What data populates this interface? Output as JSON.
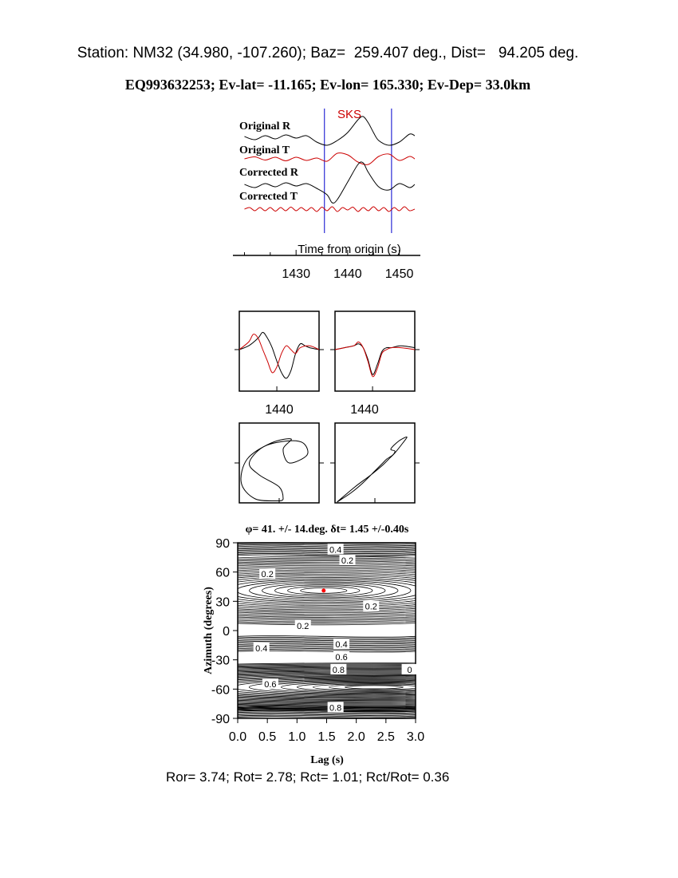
{
  "header": {
    "station_line": "Station: NM32 (34.980, -107.260); Baz=  259.407 deg., Dist=   94.205 deg.",
    "event_line": "EQ993632253; Ev-lat= -11.165; Ev-lon= 165.330; Ev-Dep= 33.0km"
  },
  "footer": {
    "ratios": "Ror= 3.74; Rot= 2.78; Rct= 1.01; Rct/Rot= 0.36"
  },
  "chart_data": [
    {
      "type": "line",
      "phase_label": "SKS",
      "xlabel": "Time from origin (s)",
      "xlim": [
        1419,
        1453
      ],
      "x_ticks": [
        1430,
        1440,
        1450
      ],
      "window": [
        1435.5,
        1448.5
      ],
      "traces": [
        {
          "name": "Original R",
          "color": "#000000",
          "x": [
            1420,
            1422,
            1424,
            1426,
            1428,
            1430,
            1432,
            1434,
            1436,
            1438,
            1440,
            1442,
            1443,
            1444,
            1445,
            1446,
            1448,
            1450,
            1452,
            1453
          ],
          "y": [
            0.1,
            -0.3,
            0.2,
            -0.2,
            0.3,
            -0.1,
            0.2,
            -0.6,
            -1.0,
            -0.4,
            0.6,
            2.2,
            2.6,
            1.8,
            0.6,
            -0.4,
            -1.0,
            -0.6,
            0.4,
            0.2
          ]
        },
        {
          "name": "Original T",
          "color": "#cc0000",
          "x": [
            1420,
            1422,
            1424,
            1426,
            1428,
            1430,
            1432,
            1434,
            1436,
            1438,
            1440,
            1442,
            1444,
            1446,
            1448,
            1450,
            1452,
            1453
          ],
          "y": [
            0,
            0.25,
            -0.15,
            0.2,
            -0.25,
            0.2,
            -0.2,
            0.1,
            -0.3,
            0.7,
            0.5,
            -0.4,
            -0.7,
            0.3,
            0.6,
            -0.2,
            0.3,
            0
          ]
        },
        {
          "name": "Corrected R",
          "color": "#000000",
          "x": [
            1420,
            1422,
            1424,
            1426,
            1428,
            1430,
            1432,
            1434,
            1436,
            1437,
            1438,
            1440,
            1442,
            1443,
            1444,
            1446,
            1448,
            1450,
            1452,
            1453
          ],
          "y": [
            0.1,
            -0.3,
            0.2,
            -0.2,
            0.3,
            -0.1,
            0.2,
            -0.4,
            -1.2,
            -2.2,
            -1.8,
            0.4,
            2.6,
            2.8,
            1.6,
            -0.2,
            -0.6,
            0.2,
            -0.3,
            0.1
          ]
        },
        {
          "name": "Corrected T",
          "color": "#cc0000",
          "x": [
            1420,
            1421,
            1422,
            1423,
            1424,
            1425,
            1426,
            1427,
            1428,
            1429,
            1430,
            1431,
            1432,
            1433,
            1434,
            1435,
            1436,
            1437,
            1438,
            1439,
            1440,
            1441,
            1442,
            1443,
            1444,
            1445,
            1446,
            1447,
            1448,
            1449,
            1450,
            1451,
            1452,
            1453
          ],
          "y": [
            0,
            0.2,
            -0.2,
            0.2,
            -0.2,
            0.2,
            -0.25,
            0.2,
            -0.2,
            0.25,
            -0.2,
            0.2,
            -0.2,
            0.2,
            -0.3,
            0.25,
            -0.2,
            0.3,
            -0.3,
            0.2,
            -0.1,
            0.25,
            -0.3,
            0.2,
            -0.2,
            0.3,
            -0.2,
            0.2,
            -0.3,
            0.2,
            -0.2,
            0.3,
            -0.2,
            0
          ]
        }
      ]
    },
    {
      "type": "line",
      "x_tick": 1440,
      "xlim": [
        1432,
        1449
      ],
      "series": [
        {
          "color": "#000000",
          "x": [
            1432,
            1434,
            1436,
            1437,
            1438,
            1439,
            1440,
            1441,
            1442,
            1443,
            1444,
            1445,
            1446,
            1447,
            1449
          ],
          "y": [
            0,
            0.1,
            0.3,
            0.45,
            0.3,
            0.05,
            -0.3,
            -0.6,
            -0.75,
            -0.55,
            -0.1,
            0.15,
            0.1,
            0.05,
            0
          ]
        },
        {
          "color": "#cc0000",
          "x": [
            1432,
            1434,
            1435,
            1436,
            1437,
            1438,
            1439,
            1440,
            1441,
            1442,
            1443,
            1444,
            1445,
            1447,
            1449
          ],
          "y": [
            0,
            0.2,
            0.4,
            0.3,
            0.0,
            -0.3,
            -0.6,
            -0.45,
            -0.1,
            0.1,
            0.0,
            -0.1,
            0.05,
            0.1,
            0
          ]
        }
      ]
    },
    {
      "type": "line",
      "x_tick": 1440,
      "xlim": [
        1432,
        1449
      ],
      "series": [
        {
          "color": "#000000",
          "x": [
            1432,
            1434,
            1436,
            1437,
            1438,
            1439,
            1440,
            1441,
            1442,
            1443,
            1444,
            1446,
            1449
          ],
          "y": [
            0,
            0.05,
            0.1,
            0.15,
            0.05,
            -0.25,
            -0.65,
            -0.4,
            -0.05,
            0.05,
            0.05,
            0.1,
            0.05
          ]
        },
        {
          "color": "#cc0000",
          "x": [
            1432,
            1434,
            1436,
            1437,
            1438,
            1439,
            1440,
            1441,
            1442,
            1443,
            1444,
            1446,
            1449
          ],
          "y": [
            0,
            0.05,
            0.1,
            0.2,
            0.05,
            -0.3,
            -0.7,
            -0.5,
            -0.1,
            0.0,
            0.05,
            0.05,
            0.0
          ]
        }
      ]
    },
    {
      "type": "scatter",
      "shape": "particle motion, original",
      "x": [
        0.0,
        -0.6,
        -0.95,
        -0.8,
        -0.2,
        0.3,
        0.1,
        0.25,
        0.7,
        0.6,
        0.2,
        -0.4,
        -0.75,
        -0.5,
        0.0,
        0.1,
        0.0
      ],
      "y": [
        -0.95,
        -0.9,
        -0.5,
        0.1,
        0.5,
        0.6,
        0.35,
        0.0,
        0.2,
        0.5,
        0.55,
        0.4,
        0.0,
        -0.3,
        -0.6,
        -0.9,
        -0.95
      ]
    },
    {
      "type": "scatter",
      "shape": "particle motion, corrected",
      "x": [
        -0.95,
        -0.5,
        -0.1,
        0.2,
        0.35,
        0.5,
        0.7,
        0.8,
        0.6,
        0.4,
        0.5,
        0.45,
        0.3,
        0.2,
        0.0,
        -0.3,
        -0.6,
        -0.95
      ],
      "y": [
        -0.98,
        -0.6,
        -0.3,
        -0.05,
        0.1,
        0.25,
        0.5,
        0.65,
        0.55,
        0.35,
        0.3,
        0.2,
        0.1,
        0.0,
        -0.2,
        -0.5,
        -0.75,
        -0.98
      ]
    },
    {
      "type": "contour",
      "title": "φ= 41. +/- 14.deg. δt= 1.45 +/-0.40s",
      "xlabel": "Lag (s)",
      "ylabel": "Azimuth (degrees)",
      "xlim": [
        0,
        3.0
      ],
      "ylim": [
        -90,
        90
      ],
      "x_ticks": [
        "0.0",
        "0.5",
        "1.0",
        "1.5",
        "2.0",
        "2.5",
        "3.0"
      ],
      "y_ticks": [
        "90",
        "60",
        "30",
        "0",
        "-30",
        "-60",
        "-90"
      ],
      "best_fit": {
        "lag": 1.45,
        "azimuth": 41
      },
      "minima": [
        {
          "lag": 1.45,
          "azimuth": 41,
          "sx": 0.35,
          "sy": 8
        },
        {
          "lag": 2.3,
          "azimuth": -58,
          "sx": 0.35,
          "sy": 3
        }
      ],
      "contour_labels": [
        {
          "text": "0.4",
          "lag": 1.65,
          "azimuth": 83
        },
        {
          "text": "0.2",
          "lag": 1.85,
          "azimuth": 72
        },
        {
          "text": "0.2",
          "lag": 0.5,
          "azimuth": 58
        },
        {
          "text": "0.2",
          "lag": 2.25,
          "azimuth": 25
        },
        {
          "text": "0.2",
          "lag": 1.1,
          "azimuth": 5
        },
        {
          "text": "0.4",
          "lag": 0.4,
          "azimuth": -18
        },
        {
          "text": "0.4",
          "lag": 1.75,
          "azimuth": -14
        },
        {
          "text": "0.6",
          "lag": 1.75,
          "azimuth": -27
        },
        {
          "text": "0.8",
          "lag": 1.7,
          "azimuth": -40
        },
        {
          "text": "0.6",
          "lag": 0.55,
          "azimuth": -55
        },
        {
          "text": "0.8",
          "lag": 1.65,
          "azimuth": -79
        },
        {
          "text": "0",
          "lag": 2.9,
          "azimuth": -40
        }
      ],
      "best_fit_color": "#ff0000"
    }
  ]
}
